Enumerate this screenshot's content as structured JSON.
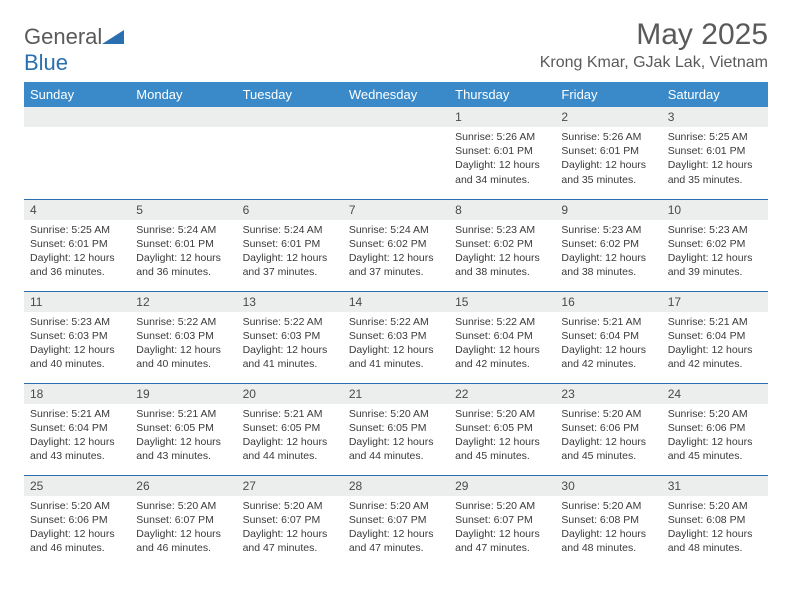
{
  "logo": {
    "text1": "General",
    "text2": "Blue"
  },
  "title": "May 2025",
  "location": "Krong Kmar, GJak Lak, Vietnam",
  "colors": {
    "header_bg": "#3a8ac9",
    "header_text": "#ffffff",
    "band_bg": "#eceded",
    "rule": "#2a6fb0",
    "body_text": "#3a3a3a",
    "title_text": "#5a5a5a"
  },
  "weekdays": [
    "Sunday",
    "Monday",
    "Tuesday",
    "Wednesday",
    "Thursday",
    "Friday",
    "Saturday"
  ],
  "weeks": [
    [
      null,
      null,
      null,
      null,
      {
        "n": "1",
        "sr": "5:26 AM",
        "ss": "6:01 PM",
        "dl": "12 hours and 34 minutes."
      },
      {
        "n": "2",
        "sr": "5:26 AM",
        "ss": "6:01 PM",
        "dl": "12 hours and 35 minutes."
      },
      {
        "n": "3",
        "sr": "5:25 AM",
        "ss": "6:01 PM",
        "dl": "12 hours and 35 minutes."
      }
    ],
    [
      {
        "n": "4",
        "sr": "5:25 AM",
        "ss": "6:01 PM",
        "dl": "12 hours and 36 minutes."
      },
      {
        "n": "5",
        "sr": "5:24 AM",
        "ss": "6:01 PM",
        "dl": "12 hours and 36 minutes."
      },
      {
        "n": "6",
        "sr": "5:24 AM",
        "ss": "6:01 PM",
        "dl": "12 hours and 37 minutes."
      },
      {
        "n": "7",
        "sr": "5:24 AM",
        "ss": "6:02 PM",
        "dl": "12 hours and 37 minutes."
      },
      {
        "n": "8",
        "sr": "5:23 AM",
        "ss": "6:02 PM",
        "dl": "12 hours and 38 minutes."
      },
      {
        "n": "9",
        "sr": "5:23 AM",
        "ss": "6:02 PM",
        "dl": "12 hours and 38 minutes."
      },
      {
        "n": "10",
        "sr": "5:23 AM",
        "ss": "6:02 PM",
        "dl": "12 hours and 39 minutes."
      }
    ],
    [
      {
        "n": "11",
        "sr": "5:23 AM",
        "ss": "6:03 PM",
        "dl": "12 hours and 40 minutes."
      },
      {
        "n": "12",
        "sr": "5:22 AM",
        "ss": "6:03 PM",
        "dl": "12 hours and 40 minutes."
      },
      {
        "n": "13",
        "sr": "5:22 AM",
        "ss": "6:03 PM",
        "dl": "12 hours and 41 minutes."
      },
      {
        "n": "14",
        "sr": "5:22 AM",
        "ss": "6:03 PM",
        "dl": "12 hours and 41 minutes."
      },
      {
        "n": "15",
        "sr": "5:22 AM",
        "ss": "6:04 PM",
        "dl": "12 hours and 42 minutes."
      },
      {
        "n": "16",
        "sr": "5:21 AM",
        "ss": "6:04 PM",
        "dl": "12 hours and 42 minutes."
      },
      {
        "n": "17",
        "sr": "5:21 AM",
        "ss": "6:04 PM",
        "dl": "12 hours and 42 minutes."
      }
    ],
    [
      {
        "n": "18",
        "sr": "5:21 AM",
        "ss": "6:04 PM",
        "dl": "12 hours and 43 minutes."
      },
      {
        "n": "19",
        "sr": "5:21 AM",
        "ss": "6:05 PM",
        "dl": "12 hours and 43 minutes."
      },
      {
        "n": "20",
        "sr": "5:21 AM",
        "ss": "6:05 PM",
        "dl": "12 hours and 44 minutes."
      },
      {
        "n": "21",
        "sr": "5:20 AM",
        "ss": "6:05 PM",
        "dl": "12 hours and 44 minutes."
      },
      {
        "n": "22",
        "sr": "5:20 AM",
        "ss": "6:05 PM",
        "dl": "12 hours and 45 minutes."
      },
      {
        "n": "23",
        "sr": "5:20 AM",
        "ss": "6:06 PM",
        "dl": "12 hours and 45 minutes."
      },
      {
        "n": "24",
        "sr": "5:20 AM",
        "ss": "6:06 PM",
        "dl": "12 hours and 45 minutes."
      }
    ],
    [
      {
        "n": "25",
        "sr": "5:20 AM",
        "ss": "6:06 PM",
        "dl": "12 hours and 46 minutes."
      },
      {
        "n": "26",
        "sr": "5:20 AM",
        "ss": "6:07 PM",
        "dl": "12 hours and 46 minutes."
      },
      {
        "n": "27",
        "sr": "5:20 AM",
        "ss": "6:07 PM",
        "dl": "12 hours and 47 minutes."
      },
      {
        "n": "28",
        "sr": "5:20 AM",
        "ss": "6:07 PM",
        "dl": "12 hours and 47 minutes."
      },
      {
        "n": "29",
        "sr": "5:20 AM",
        "ss": "6:07 PM",
        "dl": "12 hours and 47 minutes."
      },
      {
        "n": "30",
        "sr": "5:20 AM",
        "ss": "6:08 PM",
        "dl": "12 hours and 48 minutes."
      },
      {
        "n": "31",
        "sr": "5:20 AM",
        "ss": "6:08 PM",
        "dl": "12 hours and 48 minutes."
      }
    ]
  ],
  "labels": {
    "sunrise": "Sunrise:",
    "sunset": "Sunset:",
    "daylight": "Daylight:"
  }
}
